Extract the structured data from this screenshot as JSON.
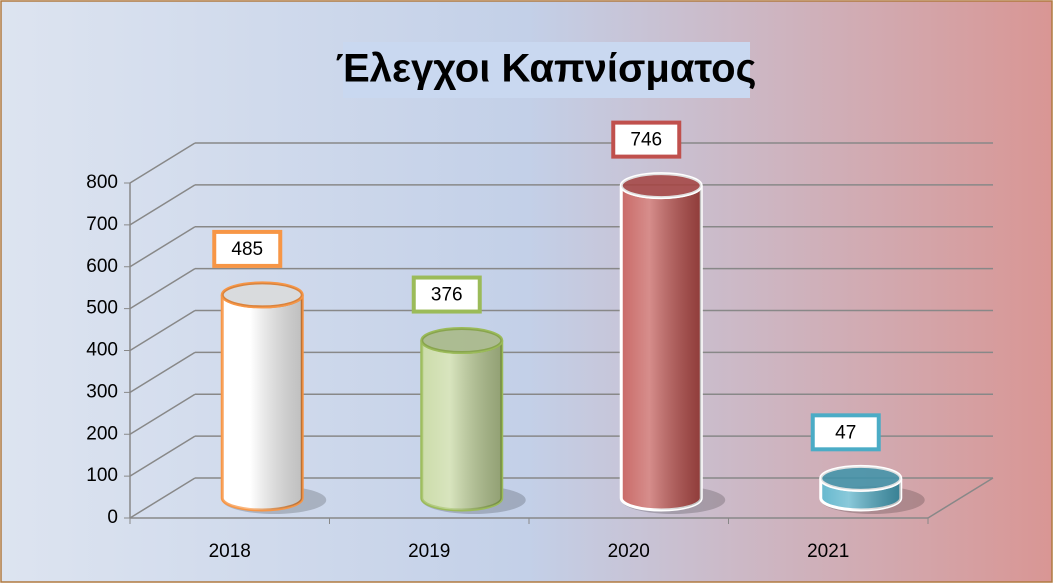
{
  "chart_data": {
    "type": "cylinder",
    "title": "Έλεγχοι Καπνίσματος",
    "categories": [
      "2018",
      "2019",
      "2020",
      "2021"
    ],
    "values": [
      485,
      376,
      746,
      47
    ],
    "colors": [
      "#ffffff",
      "#c3d69b",
      "#c0504d",
      "#4bacc6"
    ],
    "edge_colors": [
      "#f79646",
      "#9bbb59",
      "#ffffff",
      "#ffffff"
    ],
    "label_border_colors": [
      "#f79646",
      "#9bbb59",
      "#c0504d",
      "#4bacc6"
    ],
    "ylim": [
      0,
      800
    ],
    "yticks": [
      0,
      100,
      200,
      300,
      400,
      500,
      600,
      700,
      800
    ],
    "grid": true
  }
}
